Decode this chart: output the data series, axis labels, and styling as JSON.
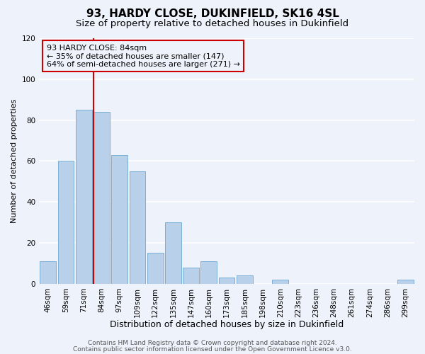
{
  "title": "93, HARDY CLOSE, DUKINFIELD, SK16 4SL",
  "subtitle": "Size of property relative to detached houses in Dukinfield",
  "xlabel": "Distribution of detached houses by size in Dukinfield",
  "ylabel": "Number of detached properties",
  "bin_labels": [
    "46sqm",
    "59sqm",
    "71sqm",
    "84sqm",
    "97sqm",
    "109sqm",
    "122sqm",
    "135sqm",
    "147sqm",
    "160sqm",
    "173sqm",
    "185sqm",
    "198sqm",
    "210sqm",
    "223sqm",
    "236sqm",
    "248sqm",
    "261sqm",
    "274sqm",
    "286sqm",
    "299sqm"
  ],
  "bar_heights": [
    11,
    60,
    85,
    84,
    63,
    55,
    15,
    30,
    8,
    11,
    3,
    4,
    0,
    2,
    0,
    0,
    0,
    0,
    0,
    0,
    2
  ],
  "bar_color": "#b8d0ea",
  "bar_edge_color": "#7aafd4",
  "vline_index": 3,
  "vline_color": "#cc0000",
  "annotation_line1": "93 HARDY CLOSE: 84sqm",
  "annotation_line2": "← 35% of detached houses are smaller (147)",
  "annotation_line3": "64% of semi-detached houses are larger (271) →",
  "annotation_box_color": "#cc0000",
  "ylim": [
    0,
    120
  ],
  "yticks": [
    0,
    20,
    40,
    60,
    80,
    100,
    120
  ],
  "footer_line1": "Contains HM Land Registry data © Crown copyright and database right 2024.",
  "footer_line2": "Contains public sector information licensed under the Open Government Licence v3.0.",
  "background_color": "#eef2fb",
  "grid_color": "#ffffff",
  "title_fontsize": 11,
  "subtitle_fontsize": 9.5,
  "xlabel_fontsize": 9,
  "ylabel_fontsize": 8,
  "tick_fontsize": 7.5,
  "footer_fontsize": 6.5,
  "annotation_fontsize": 8
}
